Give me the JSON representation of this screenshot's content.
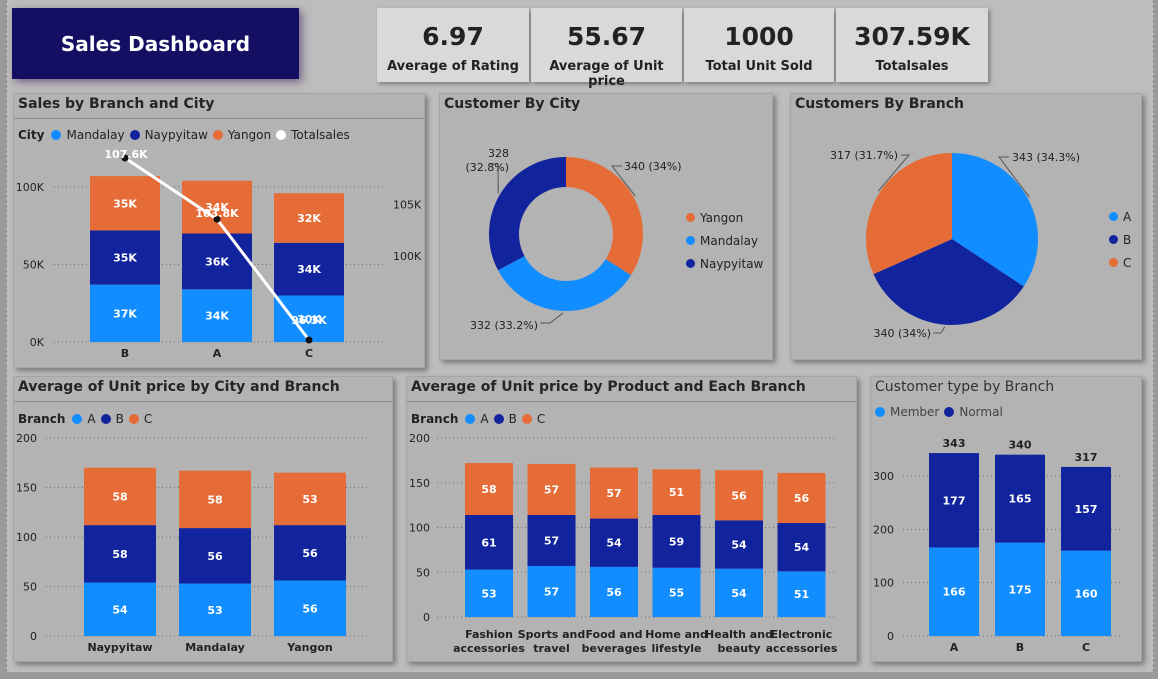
{
  "dashboard_title": "Sales Dashboard",
  "kpis": [
    {
      "value": "6.97",
      "label": "Average of Rating"
    },
    {
      "value": "55.67",
      "label": "Average of Unit price"
    },
    {
      "value": "1000",
      "label": "Total Unit Sold"
    },
    {
      "value": "307.59K",
      "label": "Totalsales"
    }
  ],
  "colors": {
    "blue": "#118dff",
    "navy": "#12239e",
    "orange": "#e66c37",
    "white": "#ffffff"
  },
  "chart_data": [
    {
      "id": "sales",
      "type": "bar",
      "title": "Sales by Branch and City",
      "legend_title": "City",
      "legend": [
        "Mandalay",
        "Naypyitaw",
        "Yangon",
        "Totalsales"
      ],
      "categories": [
        "B",
        "A",
        "C"
      ],
      "series": [
        {
          "name": "Mandalay",
          "color": "#118dff",
          "values": [
            37,
            34,
            30
          ],
          "labels": [
            "37K",
            "34K",
            "30K"
          ]
        },
        {
          "name": "Naypyitaw",
          "color": "#12239e",
          "values": [
            35,
            36,
            34
          ],
          "labels": [
            "35K",
            "36K",
            "34K"
          ]
        },
        {
          "name": "Yangon",
          "color": "#e66c37",
          "values": [
            35,
            34,
            32
          ],
          "labels": [
            "35K",
            "34K",
            "32K"
          ]
        }
      ],
      "line": {
        "name": "Totalsales",
        "values": [
          107.6,
          103.8,
          96.3
        ],
        "labels": [
          "107.6K",
          "103.8K",
          "96.3K"
        ],
        "ylim": [
          96.3,
          107.6
        ]
      },
      "y_ticks": [
        {
          "v": 0,
          "label": "0K"
        },
        {
          "v": 50,
          "label": "50K"
        },
        {
          "v": 100,
          "label": "100K"
        }
      ],
      "y2_ticks": [
        {
          "v": 100,
          "label": "100K"
        },
        {
          "v": 105,
          "label": "105K"
        }
      ],
      "ylim": [
        0,
        100
      ]
    },
    {
      "id": "city",
      "type": "pie",
      "donut": true,
      "title": "Customer By City",
      "slices": [
        {
          "name": "Yangon",
          "value": 340,
          "label": "340 (34%)",
          "color": "#e66c37"
        },
        {
          "name": "Mandalay",
          "value": 332,
          "label": "332 (33.2%)",
          "color": "#118dff"
        },
        {
          "name": "Naypyitaw",
          "value": 328,
          "label": "328 (32.8%)",
          "color": "#12239e"
        }
      ]
    },
    {
      "id": "branch",
      "type": "pie",
      "donut": false,
      "title": "Customers By Branch",
      "slices": [
        {
          "name": "A",
          "value": 343,
          "label": "343 (34.3%)",
          "color": "#118dff"
        },
        {
          "name": "B",
          "value": 340,
          "label": "340 (34%)",
          "color": "#12239e"
        },
        {
          "name": "C",
          "value": 317,
          "label": "317 (31.7%)",
          "color": "#e66c37"
        }
      ]
    },
    {
      "id": "cityprice",
      "type": "bar",
      "title": "Average of Unit price by City and Branch",
      "legend_title": "Branch",
      "legend": [
        "A",
        "B",
        "C"
      ],
      "categories": [
        "Naypyitaw",
        "Mandalay",
        "Yangon"
      ],
      "series": [
        {
          "name": "A",
          "color": "#118dff",
          "values": [
            54,
            53,
            56
          ],
          "labels": [
            "54",
            "53",
            "56"
          ]
        },
        {
          "name": "B",
          "color": "#12239e",
          "values": [
            58,
            56,
            56
          ],
          "labels": [
            "58",
            "56",
            "56"
          ]
        },
        {
          "name": "C",
          "color": "#e66c37",
          "values": [
            58,
            58,
            53
          ],
          "labels": [
            "58",
            "58",
            "53"
          ]
        }
      ],
      "y_ticks": [
        {
          "v": 0,
          "label": "0"
        },
        {
          "v": 50,
          "label": "50"
        },
        {
          "v": 100,
          "label": "100"
        },
        {
          "v": 150,
          "label": "150"
        },
        {
          "v": 200,
          "label": "200"
        }
      ],
      "ylim": [
        0,
        200
      ]
    },
    {
      "id": "product",
      "type": "bar",
      "title": "Average of Unit price by Product and Each Branch",
      "legend_title": "Branch",
      "legend": [
        "A",
        "B",
        "C"
      ],
      "categories": [
        "Fashion accessories",
        "Sports and travel",
        "Food and beverages",
        "Home and lifestyle",
        "Health and beauty",
        "Electronic accessories"
      ],
      "category_lines": [
        [
          "Fashion",
          "accessories"
        ],
        [
          "Sports and",
          "travel"
        ],
        [
          "Food and",
          "beverages"
        ],
        [
          "Home and",
          "lifestyle"
        ],
        [
          "Health and",
          "beauty"
        ],
        [
          "Electronic",
          "accessories"
        ]
      ],
      "series": [
        {
          "name": "A",
          "color": "#118dff",
          "values": [
            53,
            57,
            56,
            55,
            54,
            51
          ],
          "labels": [
            "53",
            "57",
            "56",
            "55",
            "54",
            "51"
          ]
        },
        {
          "name": "B",
          "color": "#12239e",
          "values": [
            61,
            57,
            54,
            59,
            54,
            54
          ],
          "labels": [
            "61",
            "57",
            "54",
            "59",
            "54",
            "54"
          ]
        },
        {
          "name": "C",
          "color": "#e66c37",
          "values": [
            58,
            57,
            57,
            51,
            56,
            56
          ],
          "labels": [
            "58",
            "57",
            "57",
            "51",
            "56",
            "56"
          ]
        }
      ],
      "y_ticks": [
        {
          "v": 0,
          "label": "0"
        },
        {
          "v": 50,
          "label": "50"
        },
        {
          "v": 100,
          "label": "100"
        },
        {
          "v": 150,
          "label": "150"
        },
        {
          "v": 200,
          "label": "200"
        }
      ],
      "ylim": [
        0,
        200
      ]
    },
    {
      "id": "custtype",
      "type": "bar",
      "title": "Customer type by Branch",
      "legend": [
        "Member",
        "Normal"
      ],
      "categories": [
        "A",
        "B",
        "C"
      ],
      "series": [
        {
          "name": "Member",
          "color": "#118dff",
          "values": [
            166,
            175,
            160
          ],
          "labels": [
            "166",
            "175",
            "160"
          ]
        },
        {
          "name": "Normal",
          "color": "#12239e",
          "values": [
            177,
            165,
            157
          ],
          "labels": [
            "177",
            "165",
            "157"
          ]
        }
      ],
      "totals": [
        "343",
        "340",
        "317"
      ],
      "y_ticks": [
        {
          "v": 0,
          "label": "0"
        },
        {
          "v": 100,
          "label": "100"
        },
        {
          "v": 200,
          "label": "200"
        },
        {
          "v": 300,
          "label": "300"
        }
      ],
      "ylim": [
        0,
        300
      ]
    }
  ]
}
